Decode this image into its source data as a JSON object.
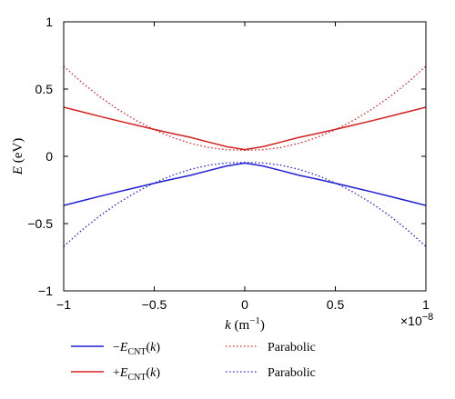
{
  "chart_data": {
    "type": "line",
    "title": "",
    "xlabel": {
      "italic": "k",
      "rest": " (m",
      "sup": "−1",
      "close": ")"
    },
    "ylabel": {
      "italic": "E",
      "rest": " (eV)"
    },
    "xlim": [
      -1,
      1
    ],
    "ylim": [
      -1,
      1
    ],
    "x_exponent": {
      "base": "×10",
      "exp": "−8"
    },
    "x_ticks": [
      -1,
      -0.5,
      0,
      0.5,
      1
    ],
    "x_tick_labels": [
      "−1",
      "−0.5",
      "0",
      "0.5",
      "1"
    ],
    "y_ticks": [
      -1,
      -0.5,
      0,
      0.5,
      1
    ],
    "y_tick_labels": [
      "−1",
      "−0.5",
      "0",
      "0.5",
      "1"
    ],
    "grid": false,
    "series": [
      {
        "name": "−E_CNT(k)",
        "style": "solid",
        "color": "#1f1fd6",
        "x": [
          -1,
          -0.9,
          -0.8,
          -0.7,
          -0.6,
          -0.5,
          -0.4,
          -0.3,
          -0.2,
          -0.1,
          0,
          0.1,
          0.2,
          0.3,
          0.4,
          0.5,
          0.6,
          0.7,
          0.8,
          0.9,
          1
        ],
        "y": [
          -0.365,
          -0.331,
          -0.297,
          -0.264,
          -0.232,
          -0.2,
          -0.17,
          -0.141,
          -0.106,
          -0.072,
          -0.05,
          -0.072,
          -0.106,
          -0.141,
          -0.17,
          -0.2,
          -0.232,
          -0.264,
          -0.297,
          -0.331,
          -0.365
        ]
      },
      {
        "name": "+E_CNT(k)",
        "style": "solid",
        "color": "#d62020",
        "x": [
          -1,
          -0.9,
          -0.8,
          -0.7,
          -0.6,
          -0.5,
          -0.4,
          -0.3,
          -0.2,
          -0.1,
          0,
          0.1,
          0.2,
          0.3,
          0.4,
          0.5,
          0.6,
          0.7,
          0.8,
          0.9,
          1
        ],
        "y": [
          0.365,
          0.331,
          0.297,
          0.264,
          0.232,
          0.2,
          0.17,
          0.141,
          0.106,
          0.072,
          0.05,
          0.072,
          0.106,
          0.141,
          0.17,
          0.2,
          0.232,
          0.264,
          0.297,
          0.331,
          0.365
        ]
      },
      {
        "name": "Parabolic",
        "style": "dotted",
        "color": "#d62020",
        "x": [
          -1,
          -0.9,
          -0.8,
          -0.7,
          -0.6,
          -0.5,
          -0.4,
          -0.3,
          -0.2,
          -0.1,
          0,
          0.1,
          0.2,
          0.3,
          0.4,
          0.5,
          0.6,
          0.7,
          0.8,
          0.9,
          1
        ],
        "y": [
          0.67,
          0.549,
          0.442,
          0.348,
          0.267,
          0.198,
          0.141,
          0.097,
          0.066,
          0.049,
          0.045,
          0.049,
          0.066,
          0.097,
          0.141,
          0.198,
          0.267,
          0.348,
          0.442,
          0.549,
          0.67
        ]
      },
      {
        "name": "Parabolic",
        "style": "dotted",
        "color": "#1f1fd6",
        "x": [
          -1,
          -0.9,
          -0.8,
          -0.7,
          -0.6,
          -0.5,
          -0.4,
          -0.3,
          -0.2,
          -0.1,
          0,
          0.1,
          0.2,
          0.3,
          0.4,
          0.5,
          0.6,
          0.7,
          0.8,
          0.9,
          1
        ],
        "y": [
          -0.67,
          -0.549,
          -0.442,
          -0.348,
          -0.267,
          -0.198,
          -0.141,
          -0.097,
          -0.066,
          -0.049,
          -0.045,
          -0.049,
          -0.066,
          -0.097,
          -0.141,
          -0.198,
          -0.267,
          -0.348,
          -0.442,
          -0.549,
          -0.67
        ]
      }
    ],
    "legend": {
      "placement": "below",
      "entries": [
        {
          "series": 0,
          "sign": "−",
          "italic": "E",
          "sub": "CNT",
          "arg": "(",
          "argItalic": "k",
          "argClose": ")"
        },
        {
          "series": 1,
          "sign": "+",
          "italic": "E",
          "sub": "CNT",
          "arg": "(",
          "argItalic": "k",
          "argClose": ")"
        },
        {
          "series": 2,
          "text": "Parabolic"
        },
        {
          "series": 3,
          "text": "Parabolic"
        }
      ]
    }
  }
}
